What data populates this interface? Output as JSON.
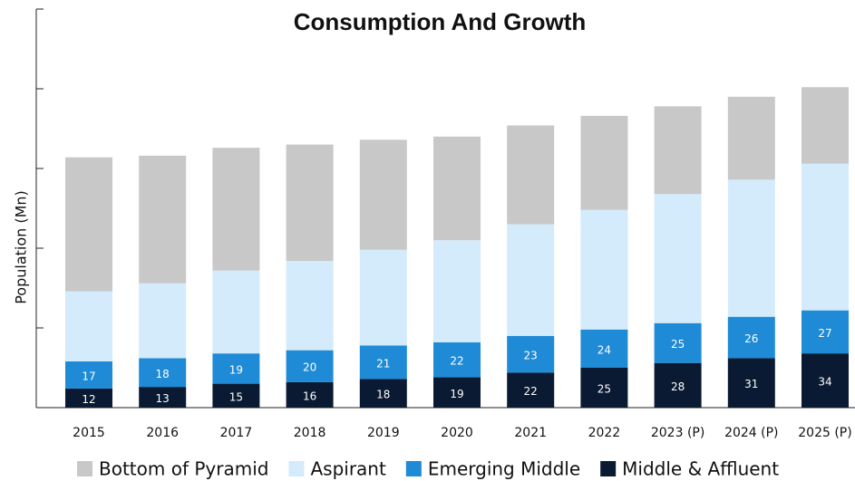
{
  "chart_data": {
    "type": "stacked_bar",
    "title": "Consumption And Growth",
    "y_label": "Population (Mn)",
    "categories": [
      "2015",
      "2016",
      "2017",
      "2018",
      "2019",
      "2020",
      "2021",
      "2022",
      "2023 (P)",
      "2024 (P)",
      "2025 (P)"
    ],
    "series": [
      {
        "name": "Middle & Affluent",
        "color": "#0b1a33",
        "values": [
          12,
          13,
          15,
          16,
          18,
          19,
          22,
          25,
          28,
          31,
          34
        ]
      },
      {
        "name": "Emerging Middle",
        "color": "#1f8ad6",
        "values": [
          17,
          18,
          19,
          20,
          21,
          22,
          23,
          24,
          25,
          26,
          27
        ]
      },
      {
        "name": "Aspirant",
        "color": "#d3ebfb",
        "values": [
          44,
          47,
          52,
          56,
          60,
          64,
          70,
          75,
          81,
          86,
          92
        ]
      },
      {
        "name": "Bottom of Pyramid",
        "color": "#c8c8c8",
        "values": [
          84,
          80,
          77,
          73,
          69,
          65,
          62,
          59,
          55,
          52,
          48
        ]
      }
    ],
    "labeled_series": [
      "Middle & Affluent",
      "Emerging Middle"
    ],
    "legend_order": [
      "Bottom of Pyramid",
      "Aspirant",
      "Emerging Middle",
      "Middle & Affluent"
    ],
    "ylim": [
      0,
      250
    ],
    "yticks": [
      0,
      50,
      100,
      150,
      200,
      250
    ],
    "grid": false,
    "legend": "bottom"
  }
}
